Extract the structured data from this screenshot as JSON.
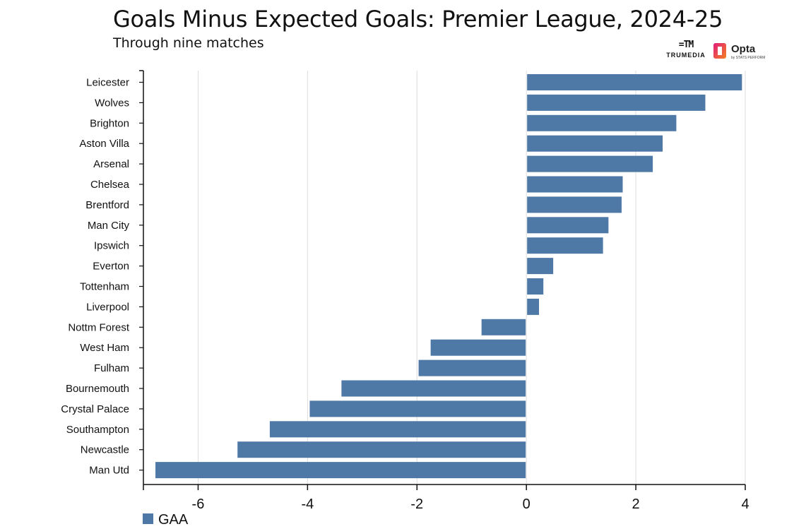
{
  "header": {
    "title": "Goals Minus Expected Goals: Premier League, 2024-25",
    "subtitle": "Through nine matches"
  },
  "logos": {
    "trumedia": "TRUMEDIA",
    "opta": "Opta",
    "opta_sub": "by STATS PERFORM"
  },
  "colors": {
    "bar": "#4e79a7",
    "grid": "#dddddd",
    "axis": "#111111"
  },
  "chart_data": {
    "type": "bar",
    "orientation": "horizontal",
    "title": "Goals Minus Expected Goals: Premier League, 2024-25",
    "subtitle": "Through nine matches",
    "xlabel": "",
    "ylabel": "",
    "xlim": [
      -7,
      4
    ],
    "xticks": [
      -6,
      -4,
      -2,
      0,
      2,
      4
    ],
    "xtick_labels": [
      "-6",
      "-4",
      "-2",
      "0",
      "2",
      "4"
    ],
    "grid": true,
    "legend": {
      "placement": "bottom-left",
      "entries": [
        "GAA"
      ]
    },
    "categories": [
      "Leicester",
      "Wolves",
      "Brighton",
      "Aston Villa",
      "Arsenal",
      "Chelsea",
      "Brentford",
      "Man City",
      "Ipswich",
      "Everton",
      "Tottenham",
      "Liverpool",
      "Nottm Forest",
      "West Ham",
      "Fulham",
      "Bournemouth",
      "Crystal Palace",
      "Southampton",
      "Newcastle",
      "Man Utd"
    ],
    "series": [
      {
        "name": "GAA",
        "values": [
          3.94,
          3.27,
          2.74,
          2.49,
          2.31,
          1.76,
          1.74,
          1.5,
          1.4,
          0.49,
          0.31,
          0.23,
          -0.82,
          -1.75,
          -1.97,
          -3.38,
          -3.96,
          -4.69,
          -5.28,
          -6.78
        ]
      }
    ]
  }
}
